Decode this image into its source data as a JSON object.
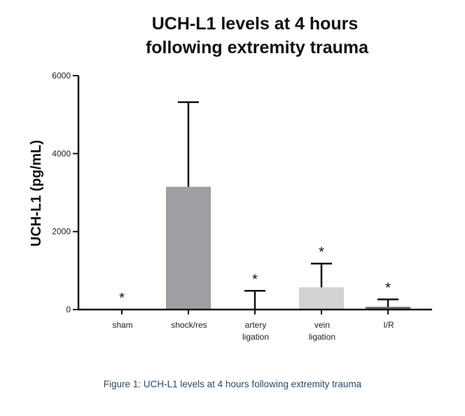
{
  "chart_data": {
    "type": "bar",
    "title_lines": [
      "UCH-L1 levels at 4 hours",
      "following extremity trauma"
    ],
    "ylabel": "UCH-L1 (pg/mL)",
    "xlabel": "",
    "ylim": [
      0,
      6000
    ],
    "yticks": [
      0,
      2000,
      4000,
      6000
    ],
    "categories": [
      [
        "sham"
      ],
      [
        "shock/res"
      ],
      [
        "artery",
        "ligation"
      ],
      [
        "vein",
        "ligation"
      ],
      [
        "I/R"
      ]
    ],
    "values": [
      0,
      3150,
      0,
      570,
      70
    ],
    "error_upper": [
      0,
      5320,
      480,
      1180,
      260
    ],
    "significance": [
      "*",
      "",
      "*",
      "*",
      "*"
    ],
    "bar_colors": [
      "#ffffff",
      "#9e9ea3",
      "#ffffff",
      "#d2d2d4",
      "#6e6e72"
    ],
    "grid": false,
    "legend": "none"
  },
  "caption": "Figure 1: UCH-L1 levels at 4 hours following extremity trauma"
}
